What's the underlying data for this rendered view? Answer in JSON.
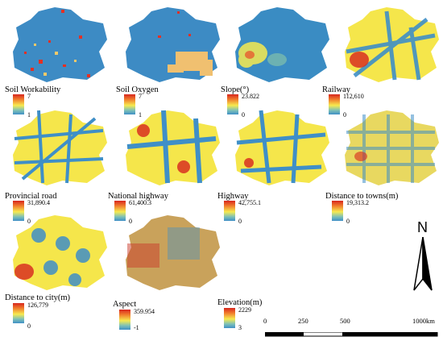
{
  "panels": [
    {
      "id": "soil-workability",
      "title": "Soil Workability",
      "max": "7",
      "min": "1",
      "palette": "#3d8bc4",
      "accent": "#e43024"
    },
    {
      "id": "soil-oxygen",
      "title": "Soil Oxygen",
      "max": "7",
      "min": "1",
      "palette": "#3d8bc4",
      "accent": "#f0c070"
    },
    {
      "id": "slope",
      "title": "Slope(°)",
      "max": "23.822",
      "min": "0",
      "palette": "#2f7fbe",
      "accent": "#f6ea4f"
    },
    {
      "id": "railway",
      "title": "Railway",
      "max": "112,610",
      "min": "0",
      "palette": "#f5e64b",
      "accent": "#3f8fc7"
    },
    {
      "id": "provincial-road",
      "title": "Provincial road",
      "max": "31,890.4",
      "min": "0",
      "palette": "#f5e64b",
      "accent": "#3f8fc7"
    },
    {
      "id": "national-highway",
      "title": "National highway",
      "max": "61,400.3",
      "min": "0",
      "palette": "#f5e64b",
      "accent": "#3f8fc7"
    },
    {
      "id": "highway",
      "title": "Highway",
      "max": "42,755.1",
      "min": "0",
      "palette": "#f5e64b",
      "accent": "#3f8fc7"
    },
    {
      "id": "distance-to-towns",
      "title": "Distance to towns(m)",
      "max": "19,313.2",
      "min": "0",
      "palette": "#e8d860",
      "accent": "#3f8fc7"
    },
    {
      "id": "distance-to-city",
      "title": "Distance to city(m)",
      "max": "126,779",
      "min": "0",
      "palette": "#f5e64b",
      "accent": "#3f8fc7"
    },
    {
      "id": "aspect",
      "title": "Aspect",
      "max": "359.954",
      "min": "-1",
      "palette": "#c9a25b",
      "accent": "#c93a2a"
    },
    {
      "id": "elevation",
      "title": "Elevation(m)",
      "max": "2229",
      "min": "3",
      "palette": "",
      "accent": ""
    }
  ],
  "north_label": "N",
  "scale": {
    "ticks": [
      "0",
      "250",
      "500"
    ],
    "end": "1000km"
  }
}
